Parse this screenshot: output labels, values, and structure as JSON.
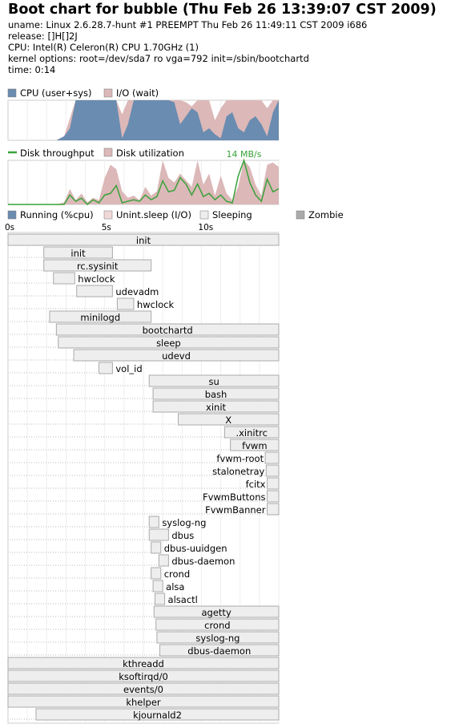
{
  "header": {
    "title": "Boot chart for bubble (Thu Feb 26 13:39:07 CST 2009)",
    "lines": [
      "uname: Linux 2.6.28.7-hunt #1 PREEMPT Thu Feb 26 11:49:11 CST 2009 i686",
      "release: []H[]2J",
      "CPU: Intel(R) Celeron(R) CPU 1.70GHz (1)",
      "kernel options: root=/dev/sda7 ro vga=792 init=/sbin/bootchartd",
      "time: 0:14"
    ]
  },
  "colors": {
    "cpu": "#6a8cb0",
    "io": "#dcb8b8",
    "throughput": "#3aa23a",
    "util": "#dcb8b8",
    "running": "#6a8cb0",
    "unint": "#f0d8d8",
    "sleeping": "#eeeeee",
    "zombie": "#aaaaaa",
    "box_border": "#aaaaaa",
    "grid": "#eeeeee"
  },
  "chart_data": [
    {
      "type": "area",
      "legend": [
        "CPU (user+sys)",
        "I/O (wait)"
      ],
      "legend_placement": "top-left",
      "xlim": [
        0,
        14
      ],
      "ylim": [
        0,
        100
      ],
      "x": [
        0,
        2.5,
        2.9,
        3.2,
        3.5,
        3.8,
        4.1,
        4.4,
        4.7,
        5.0,
        5.3,
        5.6,
        5.9,
        6.2,
        6.5,
        6.8,
        7.1,
        7.4,
        7.7,
        8.0,
        8.3,
        8.6,
        8.9,
        9.2,
        9.5,
        9.8,
        10.1,
        10.4,
        10.7,
        11.0,
        11.3,
        11.6,
        11.9,
        12.2,
        12.5,
        12.8,
        13.1,
        13.4,
        13.7,
        14.0
      ],
      "series": [
        {
          "name": "CPU (user+sys)",
          "values": [
            0,
            0,
            10,
            30,
            100,
            100,
            100,
            100,
            100,
            100,
            100,
            100,
            5,
            40,
            100,
            100,
            100,
            100,
            100,
            100,
            100,
            95,
            40,
            60,
            80,
            70,
            20,
            30,
            15,
            5,
            60,
            70,
            30,
            20,
            50,
            60,
            40,
            10,
            70,
            100
          ]
        },
        {
          "name": "I/O (wait)",
          "values": [
            0,
            0,
            10,
            55,
            100,
            100,
            100,
            100,
            100,
            100,
            100,
            100,
            65,
            100,
            100,
            100,
            100,
            100,
            100,
            100,
            100,
            100,
            100,
            95,
            85,
            100,
            100,
            100,
            50,
            80,
            100,
            100,
            100,
            100,
            100,
            100,
            100,
            80,
            100,
            100
          ]
        }
      ]
    },
    {
      "type": "line",
      "legend": [
        "Disk throughput",
        "Disk utilization"
      ],
      "legend_placement": "top-left",
      "annotation": "14 MB/s",
      "xlim": [
        0,
        14
      ],
      "x": [
        0,
        2.5,
        2.9,
        3.2,
        3.5,
        3.8,
        4.1,
        4.4,
        4.7,
        5.0,
        5.3,
        5.6,
        5.9,
        6.2,
        6.5,
        6.8,
        7.1,
        7.4,
        7.7,
        8.0,
        8.3,
        8.6,
        8.9,
        9.2,
        9.5,
        9.8,
        10.1,
        10.4,
        10.7,
        11.0,
        11.3,
        11.6,
        11.9,
        12.2,
        12.5,
        12.8,
        13.1,
        13.4,
        13.7,
        14.0
      ],
      "series": [
        {
          "name": "Disk utilization",
          "unit": "%",
          "values": [
            0,
            0,
            5,
            35,
            10,
            25,
            5,
            15,
            10,
            60,
            90,
            80,
            30,
            15,
            20,
            10,
            40,
            20,
            30,
            100,
            60,
            50,
            70,
            55,
            40,
            100,
            45,
            70,
            20,
            65,
            25,
            10,
            40,
            100,
            85,
            45,
            20,
            90,
            95,
            85
          ]
        },
        {
          "name": "Disk throughput",
          "unit": "MB/s",
          "ymax": 14,
          "values": [
            0,
            0,
            0,
            3,
            1,
            2,
            0,
            1.5,
            0.5,
            3,
            3.5,
            6,
            0.5,
            1,
            1.5,
            1,
            3,
            1.5,
            2.5,
            7.5,
            4,
            4.5,
            8.5,
            6.5,
            3,
            6.5,
            2.5,
            3.5,
            1.5,
            3,
            1,
            0.5,
            9,
            14,
            7,
            3,
            1,
            8,
            4,
            5
          ]
        }
      ]
    },
    {
      "type": "gantt",
      "legend": [
        "Running (%cpu)",
        "Unint.sleep (I/O)",
        "Sleeping",
        "Zombie"
      ],
      "legend_placement": "top",
      "x_ticks": [
        "0s",
        "5s",
        "10s"
      ],
      "xlim": [
        0,
        14
      ],
      "processes": [
        {
          "name": "init",
          "start": 0.0,
          "end": 14.0
        },
        {
          "name": "init",
          "start": 1.85,
          "end": 5.4
        },
        {
          "name": "rc.sysinit",
          "start": 1.85,
          "end": 7.4
        },
        {
          "name": "hwclock",
          "start": 2.35,
          "end": 3.45
        },
        {
          "name": "udevadm",
          "start": 3.55,
          "end": 5.4
        },
        {
          "name": "hwclock",
          "start": 5.65,
          "end": 6.5
        },
        {
          "name": "minilogd",
          "start": 2.15,
          "end": 7.4
        },
        {
          "name": "bootchartd",
          "start": 2.5,
          "end": 14.0
        },
        {
          "name": "sleep",
          "start": 2.6,
          "end": 14.0
        },
        {
          "name": "udevd",
          "start": 3.4,
          "end": 14.0
        },
        {
          "name": "vol_id",
          "start": 4.7,
          "end": 5.4
        },
        {
          "name": "su",
          "start": 7.3,
          "end": 14.0
        },
        {
          "name": "bash",
          "start": 7.5,
          "end": 14.0
        },
        {
          "name": "xinit",
          "start": 7.5,
          "end": 14.0
        },
        {
          "name": "X",
          "start": 8.8,
          "end": 14.0
        },
        {
          "name": ".xinitrc",
          "start": 11.2,
          "end": 14.0
        },
        {
          "name": "fvwm",
          "start": 11.5,
          "end": 14.0
        },
        {
          "name": "fvwm-root",
          "start": 13.3,
          "end": 14.0
        },
        {
          "name": "stalonetray",
          "start": 13.35,
          "end": 14.0
        },
        {
          "name": "fcitx",
          "start": 13.4,
          "end": 14.0
        },
        {
          "name": "FvwmButtons",
          "start": 13.4,
          "end": 14.0
        },
        {
          "name": "FvwmBanner",
          "start": 13.4,
          "end": 14.0
        },
        {
          "name": "syslog-ng",
          "start": 7.3,
          "end": 7.8
        },
        {
          "name": "dbus",
          "start": 7.3,
          "end": 8.3
        },
        {
          "name": "dbus-uuidgen",
          "start": 7.4,
          "end": 7.9
        },
        {
          "name": "dbus-daemon",
          "start": 7.8,
          "end": 8.3
        },
        {
          "name": "crond",
          "start": 7.4,
          "end": 7.9
        },
        {
          "name": "alsa",
          "start": 7.5,
          "end": 8.0
        },
        {
          "name": "alsactl",
          "start": 7.6,
          "end": 8.1
        },
        {
          "name": "agetty",
          "start": 7.55,
          "end": 14.0
        },
        {
          "name": "crond",
          "start": 7.65,
          "end": 14.0
        },
        {
          "name": "syslog-ng",
          "start": 7.7,
          "end": 14.0
        },
        {
          "name": "dbus-daemon",
          "start": 7.85,
          "end": 14.0
        },
        {
          "name": "kthreadd",
          "start": 0.0,
          "end": 14.0
        },
        {
          "name": "ksoftirqd/0",
          "start": 0.0,
          "end": 14.0
        },
        {
          "name": "events/0",
          "start": 0.0,
          "end": 14.0
        },
        {
          "name": "khelper",
          "start": 0.0,
          "end": 14.0
        },
        {
          "name": "kjournald2",
          "start": 1.45,
          "end": 14.0
        }
      ]
    }
  ]
}
